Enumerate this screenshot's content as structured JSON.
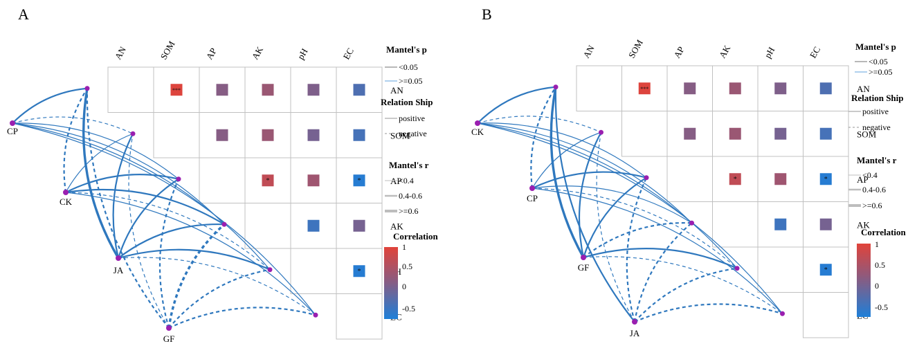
{
  "figure": {
    "colors": {
      "positive": "#e1433a",
      "neutral": "#7f5c87",
      "negative": "#2c7cd1",
      "link": "#2f78be",
      "node": "#9a1fb0",
      "grid": "#c0c0c0"
    },
    "legend": {
      "mantel_p_title": "Mantel's p",
      "mantel_p_items": [
        "<0.05",
        ">=0.05"
      ],
      "relationship_title": "Relation Ship",
      "relationship_items": [
        "positive",
        "negative"
      ],
      "mantel_r_title": "Mantel's r",
      "mantel_r_items": [
        "<0.4",
        "0.4-0.6",
        ">=0.6"
      ],
      "correlation_title": "Correlation",
      "correlation_ticks": [
        "1",
        "0.5",
        "0",
        "-0.5"
      ]
    }
  },
  "chart_data": [
    {
      "panel": "A",
      "type": "heatmap",
      "variables": [
        "AN",
        "SOM",
        "AP",
        "AK",
        "pH",
        "EC"
      ],
      "correlation_range": [
        -0.7,
        1
      ],
      "correlations": [
        {
          "row": "AN",
          "col": "SOM",
          "r": 0.95,
          "sig": "***"
        },
        {
          "row": "AN",
          "col": "AP",
          "r": -0.05,
          "sig": ""
        },
        {
          "row": "AN",
          "col": "AK",
          "r": 0.15,
          "sig": ""
        },
        {
          "row": "AN",
          "col": "pH",
          "r": -0.1,
          "sig": ""
        },
        {
          "row": "AN",
          "col": "EC",
          "r": -0.4,
          "sig": ""
        },
        {
          "row": "SOM",
          "col": "AP",
          "r": -0.05,
          "sig": ""
        },
        {
          "row": "SOM",
          "col": "AK",
          "r": 0.15,
          "sig": ""
        },
        {
          "row": "SOM",
          "col": "pH",
          "r": -0.15,
          "sig": ""
        },
        {
          "row": "SOM",
          "col": "EC",
          "r": -0.45,
          "sig": ""
        },
        {
          "row": "AP",
          "col": "AK",
          "r": 0.6,
          "sig": "*"
        },
        {
          "row": "AP",
          "col": "pH",
          "r": 0.2,
          "sig": ""
        },
        {
          "row": "AP",
          "col": "EC",
          "r": -0.65,
          "sig": "*"
        },
        {
          "row": "AK",
          "col": "pH",
          "r": -0.5,
          "sig": ""
        },
        {
          "row": "AK",
          "col": "EC",
          "r": -0.15,
          "sig": ""
        },
        {
          "row": "pH",
          "col": "EC",
          "r": -0.65,
          "sig": "*"
        }
      ],
      "groups": [
        "CP",
        "CK",
        "JA",
        "GF"
      ],
      "links": [
        {
          "group": "CP",
          "var": "AN",
          "p": "<0.05",
          "relation": "positive",
          "r": "0.4-0.6"
        },
        {
          "group": "CP",
          "var": "SOM",
          "p": "<0.05",
          "relation": "negative",
          "r": "<0.4"
        },
        {
          "group": "CP",
          "var": "AP",
          "p": "<0.05",
          "relation": "positive",
          "r": "<0.4"
        },
        {
          "group": "CP",
          "var": "AK",
          "p": "<0.05",
          "relation": "positive",
          "r": "<0.4"
        },
        {
          "group": "CP",
          "var": "pH",
          "p": "<0.05",
          "relation": "positive",
          "r": "<0.4"
        },
        {
          "group": "CP",
          "var": "EC",
          "p": "<0.05",
          "relation": "positive",
          "r": "<0.4"
        },
        {
          "group": "CK",
          "var": "AN",
          "p": "<0.05",
          "relation": "negative",
          "r": "0.4-0.6"
        },
        {
          "group": "CK",
          "var": "SOM",
          "p": "<0.05",
          "relation": "positive",
          "r": "<0.4"
        },
        {
          "group": "CK",
          "var": "AP",
          "p": "<0.05",
          "relation": "positive",
          "r": "0.4-0.6"
        },
        {
          "group": "CK",
          "var": "AK",
          "p": "<0.05",
          "relation": "positive",
          "r": "0.4-0.6"
        },
        {
          "group": "CK",
          "var": "pH",
          "p": "<0.05",
          "relation": "negative",
          "r": "<0.4"
        },
        {
          "group": "CK",
          "var": "EC",
          "p": "<0.05",
          "relation": "positive",
          "r": "<0.4"
        },
        {
          "group": "JA",
          "var": "AN",
          "p": "<0.05",
          "relation": "positive",
          "r": ">=0.6"
        },
        {
          "group": "JA",
          "var": "SOM",
          "p": "<0.05",
          "relation": "positive",
          "r": "0.4-0.6"
        },
        {
          "group": "JA",
          "var": "AP",
          "p": "<0.05",
          "relation": "positive",
          "r": "0.4-0.6"
        },
        {
          "group": "JA",
          "var": "AK",
          "p": "<0.05",
          "relation": "positive",
          "r": "0.4-0.6"
        },
        {
          "group": "JA",
          "var": "pH",
          "p": "<0.05",
          "relation": "positive",
          "r": "0.4-0.6"
        },
        {
          "group": "JA",
          "var": "EC",
          "p": "<0.05",
          "relation": "negative",
          "r": "<0.4"
        },
        {
          "group": "GF",
          "var": "AN",
          "p": "<0.05",
          "relation": "negative",
          "r": "0.4-0.6"
        },
        {
          "group": "GF",
          "var": "SOM",
          "p": "<0.05",
          "relation": "negative",
          "r": "<0.4"
        },
        {
          "group": "GF",
          "var": "AP",
          "p": "<0.05",
          "relation": "negative",
          "r": "0.4-0.6"
        },
        {
          "group": "GF",
          "var": "AK",
          "p": "<0.05",
          "relation": "negative",
          "r": ">=0.6"
        },
        {
          "group": "GF",
          "var": "pH",
          "p": "<0.05",
          "relation": "negative",
          "r": "0.4-0.6"
        },
        {
          "group": "GF",
          "var": "EC",
          "p": "<0.05",
          "relation": "negative",
          "r": "0.4-0.6"
        }
      ]
    },
    {
      "panel": "B",
      "type": "heatmap",
      "variables": [
        "AN",
        "SOM",
        "AP",
        "AK",
        "pH",
        "EC"
      ],
      "correlation_range": [
        -0.7,
        1
      ],
      "correlations": [
        {
          "row": "AN",
          "col": "SOM",
          "r": 0.95,
          "sig": "***"
        },
        {
          "row": "AN",
          "col": "AP",
          "r": -0.05,
          "sig": ""
        },
        {
          "row": "AN",
          "col": "AK",
          "r": 0.15,
          "sig": ""
        },
        {
          "row": "AN",
          "col": "pH",
          "r": -0.1,
          "sig": ""
        },
        {
          "row": "AN",
          "col": "EC",
          "r": -0.4,
          "sig": ""
        },
        {
          "row": "SOM",
          "col": "AP",
          "r": -0.05,
          "sig": ""
        },
        {
          "row": "SOM",
          "col": "AK",
          "r": 0.15,
          "sig": ""
        },
        {
          "row": "SOM",
          "col": "pH",
          "r": -0.15,
          "sig": ""
        },
        {
          "row": "SOM",
          "col": "EC",
          "r": -0.45,
          "sig": ""
        },
        {
          "row": "AP",
          "col": "AK",
          "r": 0.6,
          "sig": "*"
        },
        {
          "row": "AP",
          "col": "pH",
          "r": 0.2,
          "sig": ""
        },
        {
          "row": "AP",
          "col": "EC",
          "r": -0.65,
          "sig": "*"
        },
        {
          "row": "AK",
          "col": "pH",
          "r": -0.5,
          "sig": ""
        },
        {
          "row": "AK",
          "col": "EC",
          "r": -0.15,
          "sig": ""
        },
        {
          "row": "pH",
          "col": "EC",
          "r": -0.65,
          "sig": "*"
        }
      ],
      "groups": [
        "CK",
        "CP",
        "GF",
        "JA"
      ],
      "links": [
        {
          "group": "CK",
          "var": "AN",
          "p": "<0.05",
          "relation": "positive",
          "r": "0.4-0.6"
        },
        {
          "group": "CK",
          "var": "SOM",
          "p": "<0.05",
          "relation": "negative",
          "r": "<0.4"
        },
        {
          "group": "CK",
          "var": "AP",
          "p": "<0.05",
          "relation": "positive",
          "r": "<0.4"
        },
        {
          "group": "CK",
          "var": "AK",
          "p": "<0.05",
          "relation": "positive",
          "r": "<0.4"
        },
        {
          "group": "CK",
          "var": "pH",
          "p": "<0.05",
          "relation": "positive",
          "r": "<0.4"
        },
        {
          "group": "CK",
          "var": "EC",
          "p": "<0.05",
          "relation": "positive",
          "r": "<0.4"
        },
        {
          "group": "CP",
          "var": "AN",
          "p": "<0.05",
          "relation": "negative",
          "r": "0.4-0.6"
        },
        {
          "group": "CP",
          "var": "SOM",
          "p": "<0.05",
          "relation": "positive",
          "r": "<0.4"
        },
        {
          "group": "CP",
          "var": "AP",
          "p": "<0.05",
          "relation": "positive",
          "r": "0.4-0.6"
        },
        {
          "group": "CP",
          "var": "AK",
          "p": "<0.05",
          "relation": "positive",
          "r": "<0.4"
        },
        {
          "group": "CP",
          "var": "pH",
          "p": "<0.05",
          "relation": "negative",
          "r": "<0.4"
        },
        {
          "group": "CP",
          "var": "EC",
          "p": "<0.05",
          "relation": "positive",
          "r": "<0.4"
        },
        {
          "group": "GF",
          "var": "AN",
          "p": "<0.05",
          "relation": "positive",
          "r": ">=0.6"
        },
        {
          "group": "GF",
          "var": "SOM",
          "p": "<0.05",
          "relation": "positive",
          "r": "0.4-0.6"
        },
        {
          "group": "GF",
          "var": "AP",
          "p": "<0.05",
          "relation": "positive",
          "r": "0.4-0.6"
        },
        {
          "group": "GF",
          "var": "AK",
          "p": "<0.05",
          "relation": "negative",
          "r": "0.4-0.6"
        },
        {
          "group": "GF",
          "var": "pH",
          "p": "<0.05",
          "relation": "positive",
          "r": "0.4-0.6"
        },
        {
          "group": "GF",
          "var": "EC",
          "p": "<0.05",
          "relation": "negative",
          "r": "<0.4"
        },
        {
          "group": "JA",
          "var": "AN",
          "p": "<0.05",
          "relation": "positive",
          "r": "0.4-0.6"
        },
        {
          "group": "JA",
          "var": "SOM",
          "p": "<0.05",
          "relation": "negative",
          "r": "<0.4"
        },
        {
          "group": "JA",
          "var": "AP",
          "p": "<0.05",
          "relation": "negative",
          "r": "0.4-0.6"
        },
        {
          "group": "JA",
          "var": "AK",
          "p": "<0.05",
          "relation": "negative",
          "r": "0.4-0.6"
        },
        {
          "group": "JA",
          "var": "pH",
          "p": "<0.05",
          "relation": "negative",
          "r": "0.4-0.6"
        },
        {
          "group": "JA",
          "var": "EC",
          "p": "<0.05",
          "relation": "negative",
          "r": "0.4-0.6"
        }
      ]
    }
  ]
}
